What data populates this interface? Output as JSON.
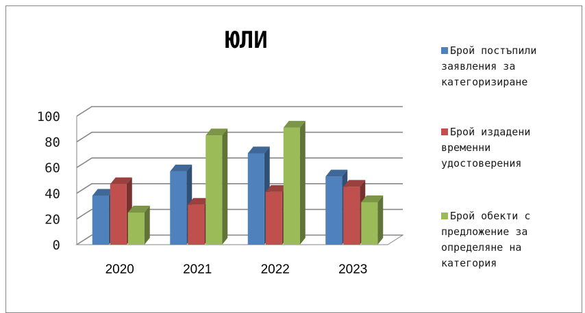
{
  "chart_data": {
    "type": "bar",
    "title": "ЮЛИ",
    "categories": [
      "2020",
      "2021",
      "2022",
      "2023"
    ],
    "series": [
      {
        "name": "Брой постъпили заявления за категоризиране",
        "color": "#4f81bd",
        "values": [
          38,
          57,
          71,
          53
        ]
      },
      {
        "name": "Брой издадени временни удостоверения",
        "color": "#c0504d",
        "values": [
          47,
          31,
          41,
          45
        ]
      },
      {
        "name": "Брой обекти с предложение за определяне на категория",
        "color": "#9bbb59",
        "values": [
          25,
          85,
          91,
          33
        ]
      }
    ],
    "ylim": [
      0,
      100
    ],
    "yticks": [
      0,
      20,
      40,
      60,
      80,
      100
    ],
    "grid": true,
    "legend_position": "right",
    "three_d": true
  }
}
